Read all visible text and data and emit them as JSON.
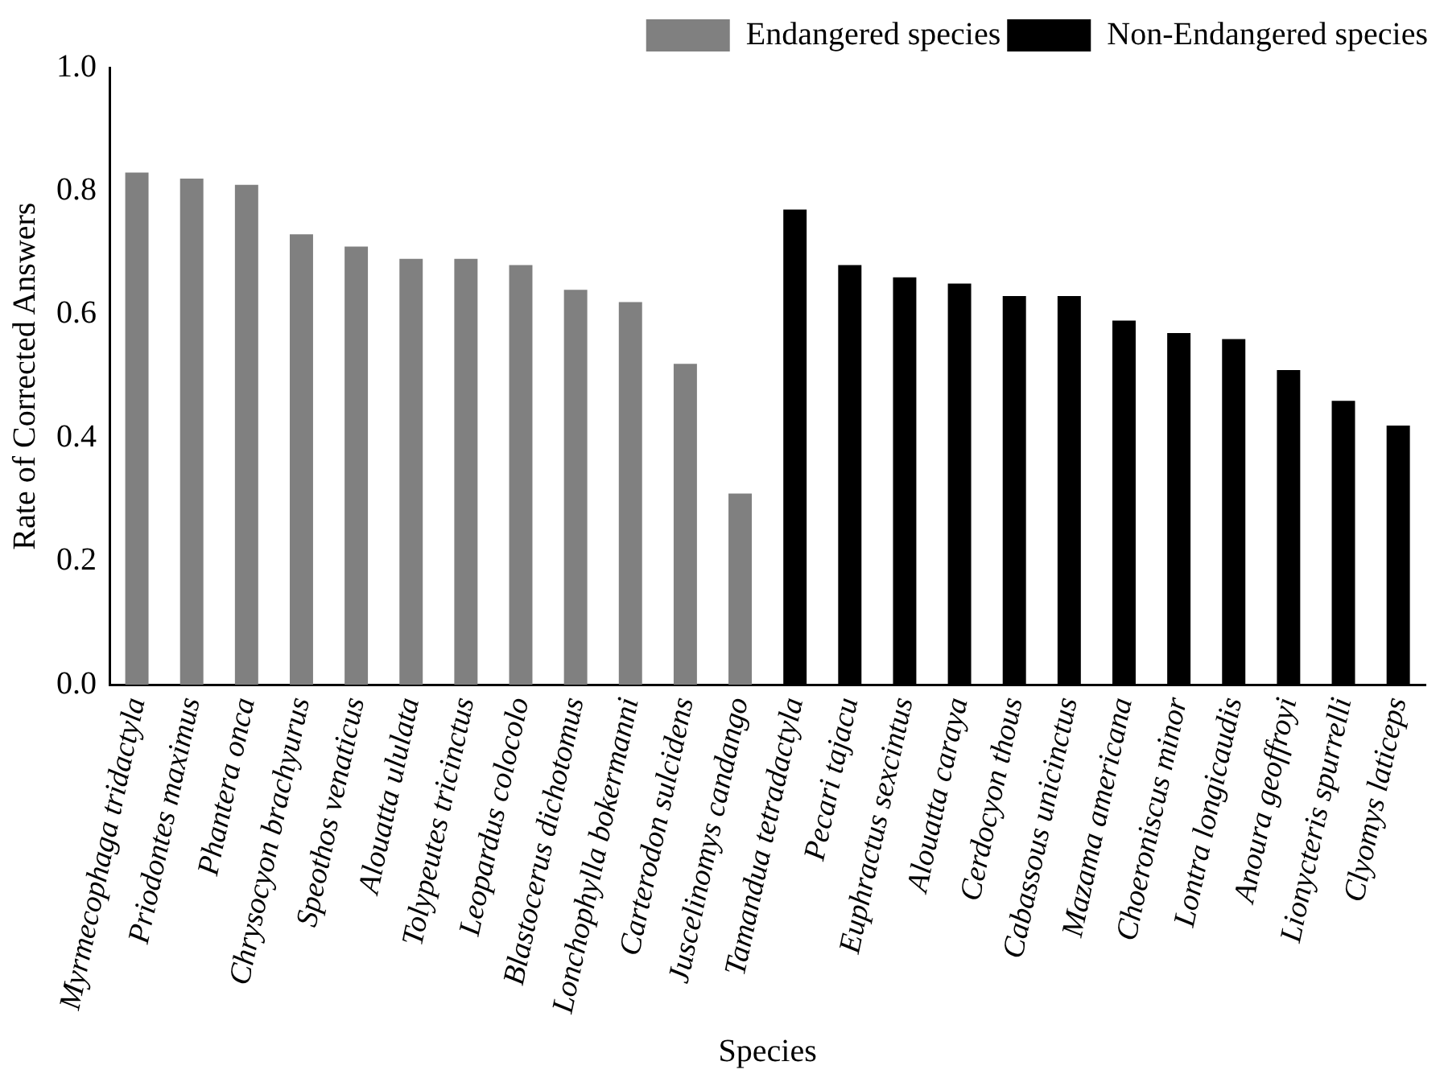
{
  "chart_data": {
    "type": "bar",
    "xlabel": "Species",
    "ylabel": "Rate of Corrected Answers",
    "categories": [
      "Myrmecophaga tridactyla",
      "Priodontes maximus",
      "Phantera onca",
      "Chrysocyon brachyurus",
      "Speothos venaticus",
      "Alouatta ululata",
      "Tolypeutes tricinctus",
      "Leopardus colocolo",
      "Blastocerus dichotomus",
      "Lonchophylla bokermanni",
      "Carterodon sulcidens",
      "Juscelinomys candango",
      "Tamandua tetradactyla",
      "Pecari tajacu",
      "Euphractus sexcintus",
      "Alouatta caraya",
      "Cerdocyon thous",
      "Cabassous unicinctus",
      "Mazama americana",
      "Choeroniscus minor",
      "Lontra longicaudis",
      "Anoura geoffroyi",
      "Lionycteris spurrelli",
      "Clyomys laticeps"
    ],
    "series": [
      {
        "name": "Endangered species",
        "color": "#808080",
        "values": [
          0.83,
          0.82,
          0.81,
          0.73,
          0.71,
          0.69,
          0.69,
          0.68,
          0.64,
          0.62,
          0.52,
          0.31,
          null,
          null,
          null,
          null,
          null,
          null,
          null,
          null,
          null,
          null,
          null,
          null
        ]
      },
      {
        "name": "Non-Endangered species",
        "color": "#000000",
        "values": [
          null,
          null,
          null,
          null,
          null,
          null,
          null,
          null,
          null,
          null,
          null,
          null,
          0.77,
          0.68,
          0.66,
          0.65,
          0.63,
          0.63,
          0.59,
          0.57,
          0.56,
          0.51,
          0.46,
          0.42
        ]
      }
    ],
    "ylim": [
      0,
      1
    ],
    "yticks": [
      {
        "value": 0,
        "label": "0.0"
      },
      {
        "value": 0.2,
        "label": "0.2"
      },
      {
        "value": 0.4,
        "label": "0.4"
      },
      {
        "value": 0.6,
        "label": "0.6"
      },
      {
        "value": 0.8,
        "label": "0.8"
      },
      {
        "value": 1,
        "label": "1.0"
      }
    ],
    "grid": false,
    "legend": "top right"
  }
}
